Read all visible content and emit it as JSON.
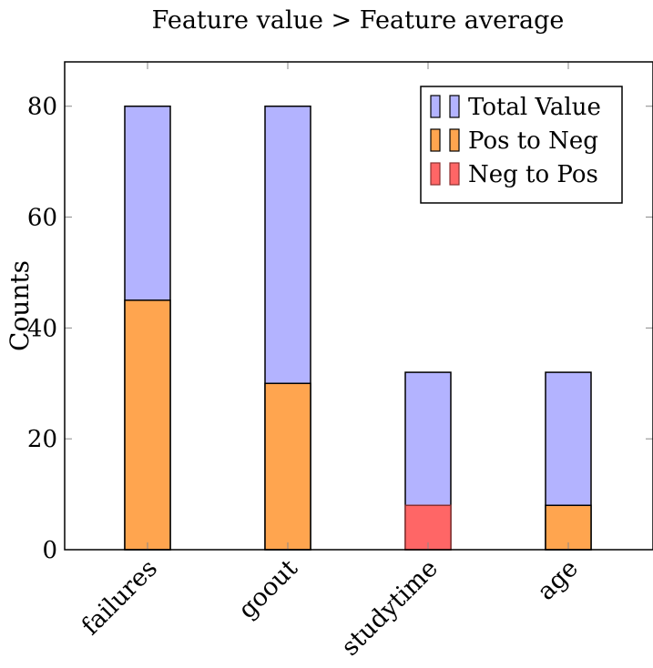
{
  "chart_data": {
    "type": "bar",
    "title": "Feature value > Feature average",
    "xlabel": "",
    "ylabel": "Counts",
    "categories": [
      "failures",
      "goout",
      "studytime",
      "age"
    ],
    "ylim": [
      0,
      88
    ],
    "yticks": [
      0,
      20,
      40,
      60,
      80
    ],
    "grid": false,
    "legend": "top-right",
    "series": [
      {
        "name": "Total Value",
        "values": [
          80,
          80,
          32,
          32
        ],
        "color": "#b3b3ff"
      },
      {
        "name": "Pos to Neg",
        "values": [
          45,
          30,
          0,
          8
        ],
        "color": "#ffa54f"
      },
      {
        "name": "Neg to Pos",
        "values": [
          0,
          0,
          8,
          0
        ],
        "color": "#ff6666"
      }
    ]
  }
}
